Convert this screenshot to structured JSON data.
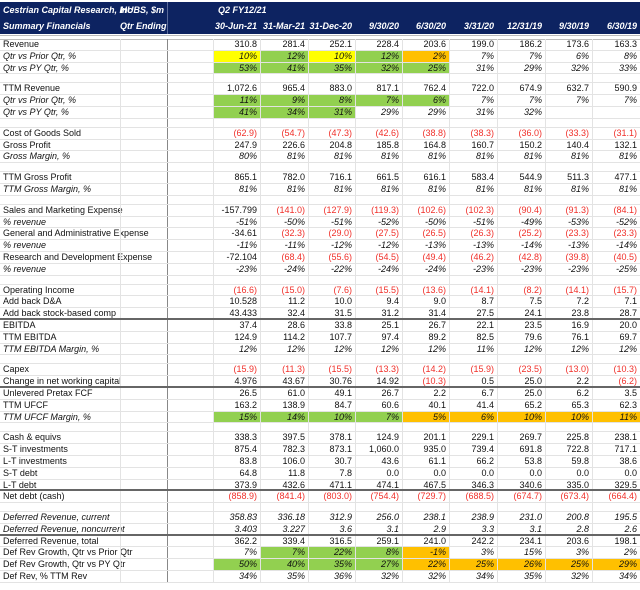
{
  "header": {
    "company": "Cestrian Capital Research, Inc",
    "subtitle": "Summary Financials",
    "ticker": "HUBS, $m",
    "period_label": "Qtr Ending",
    "fiscal": "Q2 FY12/21",
    "dates": [
      "30-Jun-21",
      "31-Mar-21",
      "31-Dec-20",
      "9/30/20",
      "6/30/20",
      "3/31/20",
      "12/31/19",
      "9/30/19",
      "6/30/19"
    ]
  },
  "colors": {
    "green": "#92d050",
    "yellow": "#ffff00",
    "orange": "#ffc000",
    "header": "#0d2361",
    "negative": "#f0302a"
  },
  "rows": [
    {
      "label": "Revenue",
      "values": [
        "310.8",
        "281.4",
        "252.1",
        "228.4",
        "203.6",
        "199.0",
        "186.2",
        "173.6",
        "163.3"
      ]
    },
    {
      "label": "Qtr vs Prior Qtr, %",
      "italic": true,
      "values": [
        "10%",
        "12%",
        "10%",
        "12%",
        "2%",
        "7%",
        "7%",
        "6%",
        "8%"
      ],
      "hl": [
        "yellow",
        "green",
        "yellow",
        "green",
        "orange"
      ]
    },
    {
      "label": "Qtr vs PY Qtr, %",
      "italic": true,
      "values": [
        "53%",
        "41%",
        "35%",
        "32%",
        "25%",
        "31%",
        "29%",
        "32%",
        "33%"
      ],
      "hl": [
        "green",
        "green",
        "green",
        "green",
        "green"
      ]
    },
    {
      "gap": true
    },
    {
      "label": "TTM Revenue",
      "values": [
        "1,072.6",
        "965.4",
        "883.0",
        "817.1",
        "762.4",
        "722.0",
        "674.9",
        "632.7",
        "590.9"
      ]
    },
    {
      "label": "Qtr vs Prior Qtr, %",
      "italic": true,
      "values": [
        "11%",
        "9%",
        "8%",
        "7%",
        "6%",
        "7%",
        "7%",
        "7%",
        "7%"
      ],
      "hl": [
        "green",
        "green",
        "green",
        "green",
        "green"
      ]
    },
    {
      "label": "Qtr vs PY Qtr, %",
      "italic": true,
      "values": [
        "41%",
        "34%",
        "31%",
        "29%",
        "29%",
        "31%",
        "32%",
        "",
        ""
      ],
      "hl": [
        "green",
        "green",
        "green"
      ]
    },
    {
      "gap": true
    },
    {
      "label": "Cost of Goods Sold",
      "values": [
        "(62.9)",
        "(54.7)",
        "(47.3)",
        "(42.6)",
        "(38.8)",
        "(38.3)",
        "(36.0)",
        "(33.3)",
        "(31.1)"
      ]
    },
    {
      "label": "Gross Profit",
      "values": [
        "247.9",
        "226.6",
        "204.8",
        "185.8",
        "164.8",
        "160.7",
        "150.2",
        "140.4",
        "132.1"
      ]
    },
    {
      "label": "Gross Margin, %",
      "italic": true,
      "values": [
        "80%",
        "81%",
        "81%",
        "81%",
        "81%",
        "81%",
        "81%",
        "81%",
        "81%"
      ]
    },
    {
      "gap": true
    },
    {
      "label": "TTM Gross Profit",
      "values": [
        "865.1",
        "782.0",
        "716.1",
        "661.5",
        "616.1",
        "583.4",
        "544.9",
        "511.3",
        "477.1"
      ]
    },
    {
      "label": "TTM Gross Margin, %",
      "italic": true,
      "values": [
        "81%",
        "81%",
        "81%",
        "81%",
        "81%",
        "81%",
        "81%",
        "81%",
        "81%"
      ]
    },
    {
      "gap": true
    },
    {
      "label": "Sales and Marketing Expense",
      "values": [
        "-157.799",
        "(141.0)",
        "(127.9)",
        "(119.3)",
        "(102.6)",
        "(102.3)",
        "(90.4)",
        "(91.3)",
        "(84.1)"
      ]
    },
    {
      "label": "% revenue",
      "italic": true,
      "values": [
        "-51%",
        "-50%",
        "-51%",
        "-52%",
        "-50%",
        "-51%",
        "-49%",
        "-53%",
        "-52%"
      ]
    },
    {
      "label": "General and Administrative Expense",
      "values": [
        "-34.61",
        "(32.3)",
        "(29.0)",
        "(27.5)",
        "(26.5)",
        "(26.3)",
        "(25.2)",
        "(23.3)",
        "(23.3)"
      ]
    },
    {
      "label": "% revenue",
      "italic": true,
      "values": [
        "-11%",
        "-11%",
        "-12%",
        "-12%",
        "-13%",
        "-13%",
        "-14%",
        "-13%",
        "-14%"
      ]
    },
    {
      "label": "Research and Development Expense",
      "values": [
        "-72.104",
        "(68.4)",
        "(55.6)",
        "(54.5)",
        "(49.4)",
        "(46.2)",
        "(42.8)",
        "(39.8)",
        "(40.5)"
      ]
    },
    {
      "label": "% revenue",
      "italic": true,
      "values": [
        "-23%",
        "-24%",
        "-22%",
        "-24%",
        "-24%",
        "-23%",
        "-23%",
        "-23%",
        "-25%"
      ]
    },
    {
      "gap": true
    },
    {
      "label": "Operating Income",
      "values": [
        "(16.6)",
        "(15.0)",
        "(7.6)",
        "(15.5)",
        "(13.6)",
        "(14.1)",
        "(8.2)",
        "(14.1)",
        "(15.7)"
      ]
    },
    {
      "label": "Add back D&A",
      "values": [
        "10.528",
        "11.2",
        "10.0",
        "9.4",
        "9.0",
        "8.7",
        "7.5",
        "7.2",
        "7.1"
      ]
    },
    {
      "label": "Add back stock-based comp",
      "thick": true,
      "values": [
        "43.433",
        "32.4",
        "31.5",
        "31.2",
        "31.4",
        "27.5",
        "24.1",
        "23.8",
        "28.7"
      ]
    },
    {
      "label": "EBITDA",
      "values": [
        "37.4",
        "28.6",
        "33.8",
        "25.1",
        "26.7",
        "22.1",
        "23.5",
        "16.9",
        "20.0"
      ]
    },
    {
      "label": "TTM EBITDA",
      "values": [
        "124.9",
        "114.2",
        "107.7",
        "97.4",
        "89.2",
        "82.5",
        "79.6",
        "76.1",
        "69.7"
      ]
    },
    {
      "label": "TTM EBITDA Margin, %",
      "italic": true,
      "values": [
        "12%",
        "12%",
        "12%",
        "12%",
        "12%",
        "11%",
        "12%",
        "12%",
        "12%"
      ]
    },
    {
      "gap": true
    },
    {
      "label": "Capex",
      "values": [
        "(15.9)",
        "(11.3)",
        "(15.5)",
        "(13.3)",
        "(14.2)",
        "(15.9)",
        "(23.5)",
        "(13.0)",
        "(10.3)"
      ]
    },
    {
      "label": "Change in net working capital",
      "thick": true,
      "values": [
        "4.976",
        "43.67",
        "30.76",
        "14.92",
        "(10.3)",
        "0.5",
        "25.0",
        "2.2",
        "(6.2)"
      ]
    },
    {
      "label": "Unlevered Pretax FCF",
      "values": [
        "26.5",
        "61.0",
        "49.1",
        "26.7",
        "2.2",
        "6.7",
        "25.0",
        "6.2",
        "3.5"
      ]
    },
    {
      "label": "TTM UFCF",
      "values": [
        "163.2",
        "138.9",
        "84.7",
        "60.6",
        "40.1",
        "41.4",
        "65.2",
        "65.3",
        "62.3"
      ]
    },
    {
      "label": "TTM UFCF Margin, %",
      "italic": true,
      "values": [
        "15%",
        "14%",
        "10%",
        "7%",
        "5%",
        "6%",
        "10%",
        "10%",
        "11%"
      ],
      "hl": [
        "green",
        "green",
        "green",
        "green",
        "orange",
        "orange",
        "orange",
        "orange",
        "orange"
      ]
    },
    {
      "gap": true
    },
    {
      "label": "Cash & equivs",
      "values": [
        "338.3",
        "397.5",
        "378.1",
        "124.9",
        "201.1",
        "229.1",
        "269.7",
        "225.8",
        "238.1"
      ]
    },
    {
      "label": "S-T investments",
      "values": [
        "875.4",
        "782.3",
        "873.1",
        "1,060.0",
        "935.0",
        "739.4",
        "691.8",
        "722.8",
        "717.1"
      ]
    },
    {
      "label": "L-T investments",
      "values": [
        "83.8",
        "106.0",
        "30.7",
        "43.6",
        "61.1",
        "66.2",
        "53.8",
        "59.8",
        "38.6"
      ]
    },
    {
      "label": "S-T debt",
      "values": [
        "64.8",
        "11.8",
        "7.8",
        "0.0",
        "0.0",
        "0.0",
        "0.0",
        "0.0",
        "0.0"
      ]
    },
    {
      "label": "L-T debt",
      "thick": true,
      "values": [
        "373.9",
        "432.6",
        "471.1",
        "474.1",
        "467.5",
        "346.3",
        "340.6",
        "335.0",
        "329.5"
      ]
    },
    {
      "label": "Net debt (cash)",
      "values": [
        "(858.9)",
        "(841.4)",
        "(803.0)",
        "(754.4)",
        "(729.7)",
        "(688.5)",
        "(674.7)",
        "(673.4)",
        "(664.4)"
      ]
    },
    {
      "gap": true
    },
    {
      "label": "Deferred Revenue, current",
      "italic": true,
      "values": [
        "358.83",
        "336.18",
        "312.9",
        "256.0",
        "238.1",
        "238.9",
        "231.0",
        "200.8",
        "195.5"
      ]
    },
    {
      "label": "Deferred Revenue, noncurrent",
      "italic": true,
      "thick": true,
      "values": [
        "3.403",
        "3.227",
        "3.6",
        "3.1",
        "2.9",
        "3.3",
        "3.1",
        "2.8",
        "2.6"
      ]
    },
    {
      "label": "Deferred Revenue, total",
      "values": [
        "362.2",
        "339.4",
        "316.5",
        "259.1",
        "241.0",
        "242.2",
        "234.1",
        "203.6",
        "198.1"
      ]
    },
    {
      "label": "Def Rev Growth, Qtr vs Prior Qtr",
      "italic": false,
      "pitalic": true,
      "values": [
        "7%",
        "7%",
        "22%",
        "8%",
        "-1%",
        "3%",
        "15%",
        "3%",
        "2%"
      ],
      "hl": [
        "",
        "green",
        "green",
        "green",
        "orange"
      ]
    },
    {
      "label": "Def Rev Growth, Qtr vs PY Qtr",
      "pitalic": true,
      "values": [
        "50%",
        "40%",
        "35%",
        "27%",
        "22%",
        "25%",
        "26%",
        "25%",
        "29%"
      ],
      "hl": [
        "green",
        "green",
        "green",
        "green",
        "orange",
        "orange",
        "orange",
        "orange",
        "orange"
      ]
    },
    {
      "label": "Def Rev, % TTM Rev",
      "pitalic": true,
      "values": [
        "34%",
        "35%",
        "36%",
        "32%",
        "32%",
        "34%",
        "35%",
        "32%",
        "34%"
      ]
    }
  ]
}
